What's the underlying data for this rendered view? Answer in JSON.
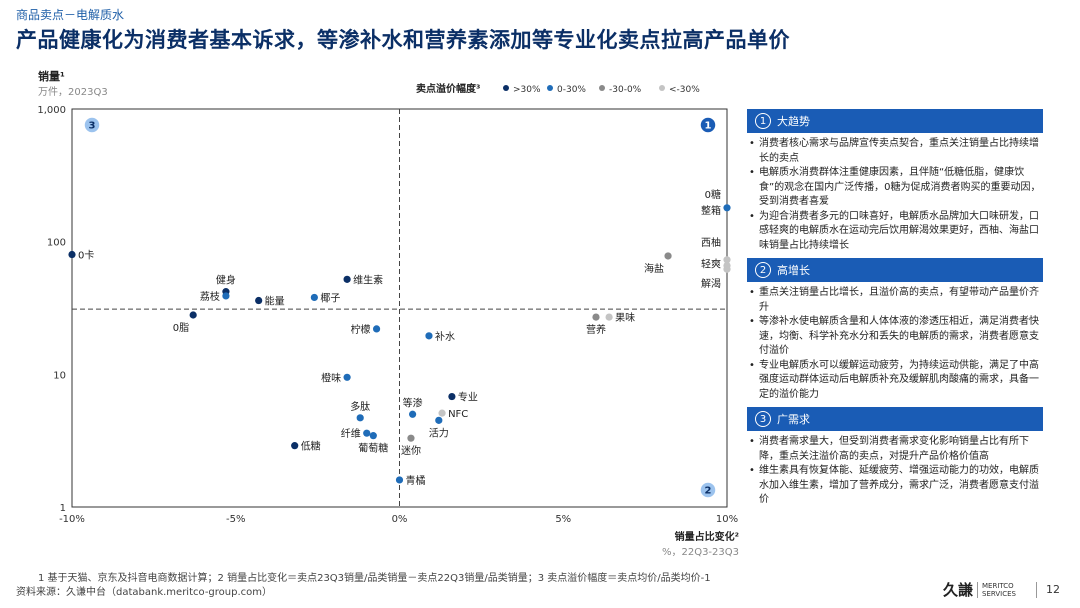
{
  "header": {
    "breadcrumb": "商品卖点－电解质水",
    "title": "产品健康化为消费者基本诉求，等渗补水和营养素添加等专业化卖点拉高产品单价"
  },
  "chart_data": {
    "type": "scatter",
    "ylabel": "销量¹",
    "ylabel_sub": "万件，2023Q3",
    "xlabel": "销量占比变化²",
    "xlabel_sub": "%，22Q3-23Q3",
    "x_scale": "linear",
    "y_scale": "log",
    "xlim": [
      -10,
      10
    ],
    "ylim": [
      1,
      1000
    ],
    "x_ticks": [
      {
        "value": -10,
        "label": "-10%"
      },
      {
        "value": -5,
        "label": "-5%"
      },
      {
        "value": 0,
        "label": "0%"
      },
      {
        "value": 5,
        "label": "5%"
      },
      {
        "value": 10,
        "label": "10%"
      }
    ],
    "y_ticks": [
      {
        "value": 1,
        "label": "1"
      },
      {
        "value": 10,
        "label": "10"
      },
      {
        "value": 100,
        "label": "100"
      },
      {
        "value": 1000,
        "label": "1,000"
      }
    ],
    "divider_x": 0,
    "divider_y": 31,
    "legend_title": "卖点溢价幅度³",
    "legend_position": "top",
    "series": [
      {
        "name": ">30%",
        "color": "#0b2f66"
      },
      {
        "name": "0-30%",
        "color": "#1f6cb8"
      },
      {
        "name": "-30-0%",
        "color": "#8a8a8a"
      },
      {
        "name": "<-30%",
        "color": "#c4c4c4"
      }
    ],
    "points": [
      {
        "label": "0卡",
        "x": -10.0,
        "y": 80,
        "series": ">30%",
        "anchor": "right"
      },
      {
        "label": "健身",
        "x": -5.3,
        "y": 42,
        "series": ">30%",
        "anchor": "above"
      },
      {
        "label": "荔枝",
        "x": -5.3,
        "y": 39,
        "series": "0-30%",
        "anchor": "left"
      },
      {
        "label": "能量",
        "x": -4.3,
        "y": 36,
        "series": ">30%",
        "anchor": "right"
      },
      {
        "label": "0脂",
        "x": -6.3,
        "y": 28,
        "series": ">30%",
        "anchor": "below-left"
      },
      {
        "label": "维生素",
        "x": -1.6,
        "y": 52,
        "series": ">30%",
        "anchor": "right"
      },
      {
        "label": "椰子",
        "x": -2.6,
        "y": 38,
        "series": "0-30%",
        "anchor": "right"
      },
      {
        "label": "柠檬",
        "x": -0.7,
        "y": 22,
        "series": "0-30%",
        "anchor": "left"
      },
      {
        "label": "补水",
        "x": 0.9,
        "y": 19.5,
        "series": "0-30%",
        "anchor": "right"
      },
      {
        "label": "橙味",
        "x": -1.6,
        "y": 9.5,
        "series": "0-30%",
        "anchor": "left"
      },
      {
        "label": "多肽",
        "x": -1.2,
        "y": 4.7,
        "series": "0-30%",
        "anchor": "above"
      },
      {
        "label": "纤维",
        "x": -1.0,
        "y": 3.6,
        "series": "0-30%",
        "anchor": "left"
      },
      {
        "label": "葡萄糖",
        "x": -0.8,
        "y": 3.45,
        "series": "0-30%",
        "anchor": "below"
      },
      {
        "label": "低糖",
        "x": -3.2,
        "y": 2.9,
        "series": ">30%",
        "anchor": "right"
      },
      {
        "label": "专业",
        "x": 1.6,
        "y": 6.8,
        "series": ">30%",
        "anchor": "right"
      },
      {
        "label": "等渗",
        "x": 0.4,
        "y": 5.0,
        "series": "0-30%",
        "anchor": "above"
      },
      {
        "label": "NFC",
        "x": 1.3,
        "y": 5.1,
        "series": "<-30%",
        "anchor": "right"
      },
      {
        "label": "活力",
        "x": 1.2,
        "y": 4.5,
        "series": "0-30%",
        "anchor": "below"
      },
      {
        "label": "迷你",
        "x": 0.35,
        "y": 3.3,
        "series": "-30-0%",
        "anchor": "below"
      },
      {
        "label": "青橘",
        "x": 0.0,
        "y": 1.6,
        "series": "0-30%",
        "anchor": "right"
      },
      {
        "label": "营养",
        "x": 6.0,
        "y": 27,
        "series": "-30-0%",
        "anchor": "below"
      },
      {
        "label": "果味",
        "x": 6.4,
        "y": 27,
        "series": "<-30%",
        "anchor": "right"
      },
      {
        "label": "0糖整箱",
        "x": 10.0,
        "y": 180,
        "series": "0-30%",
        "anchor": "left"
      },
      {
        "label": "海盐",
        "x": 8.2,
        "y": 78,
        "series": "-30-0%",
        "anchor": "below-left"
      },
      {
        "label": "西柚",
        "x": 10.0,
        "y": 73,
        "series": "<-30%",
        "anchor": "left"
      },
      {
        "label": "轻爽",
        "x": 10.0,
        "y": 66,
        "series": "<-30%",
        "anchor": "left"
      },
      {
        "label": "解渴",
        "x": 10.0,
        "y": 62,
        "series": "<-30%",
        "anchor": "left"
      }
    ],
    "quadrant_badges": [
      {
        "id": "1",
        "position": "top-right",
        "style": "dark"
      },
      {
        "id": "2",
        "position": "bottom-right",
        "style": "light"
      },
      {
        "id": "3",
        "position": "top-left",
        "style": "light"
      }
    ]
  },
  "panels": [
    {
      "num": "1",
      "title": "大趋势",
      "bullets": [
        "消费者核心需求与品牌宣传卖点契合，重点关注销量占比持续增长的卖点",
        "电解质水消费群体注重健康因素，且伴随“低糖低脂，健康饮食”的观念在国内广泛传播，0糖为促成消费者购买的重要动因，受到消费者喜爱",
        "为迎合消费者多元的口味喜好，电解质水品牌加大口味研发，口感轻爽的电解质水在运动完后饮用解渴效果更好，西柚、海盐口味销量占比持续增长"
      ]
    },
    {
      "num": "2",
      "title": "高增长",
      "bullets": [
        "重点关注销量占比增长，且溢价高的卖点，有望带动产品量价齐升",
        "等渗补水使电解质含量和人体体液的渗透压相近，满足消费者快速，均衡、科学补充水分和丢失的电解质的需求，消费者愿意支付溢价",
        "专业电解质水可以缓解运动疲劳，为持续运动供能，满足了中高强度运动群体运动后电解质补充及缓解肌肉酸痛的需求，具备一定的溢价能力"
      ]
    },
    {
      "num": "3",
      "title": "广需求",
      "bullets": [
        "消费者需求量大，但受到消费者需求变化影响销量占比有所下降，重点关注溢价高的卖点，对提升产品价格价值高",
        "维生素具有恢复体能、延缓疲劳、增强运动能力的功效，电解质水加入维生素，增加了营养成分，需求广泛，消费者愿意支付溢价"
      ]
    }
  ],
  "footer": {
    "note": "1  基于天猫、京东及抖音电商数据计算；2  销量占比变化＝卖点23Q3销量/品类销量－卖点22Q3销量/品类销量；3  卖点溢价幅度＝卖点均价/品类均价-1",
    "source": "资料来源：久谦中台（databank.meritco-group.com）",
    "logo_cn": "久謙",
    "logo_en_1": "MERITCO",
    "logo_en_2": "SERVICES",
    "page_number": "12"
  }
}
